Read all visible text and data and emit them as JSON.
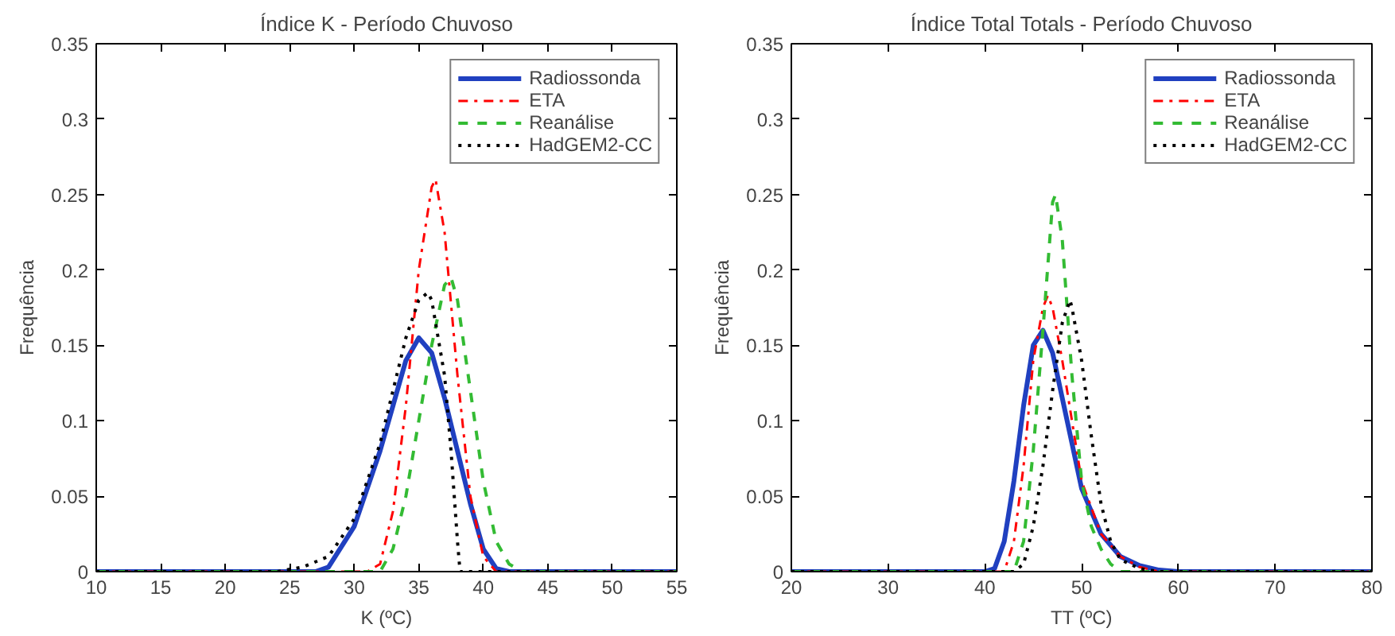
{
  "chart_data": [
    {
      "type": "line",
      "title": "Índice K - Período Chuvoso",
      "xlabel": "K (ºC)",
      "ylabel": "Frequência",
      "xlim": [
        10,
        55
      ],
      "xticks": [
        10,
        15,
        20,
        25,
        30,
        35,
        40,
        45,
        50,
        55
      ],
      "ylim": [
        0,
        0.35
      ],
      "yticks": [
        0,
        0.05,
        0.1,
        0.15,
        0.2,
        0.25,
        0.3,
        0.35
      ],
      "grid": false,
      "legend": "top right",
      "series": [
        {
          "name": "Radiossonda",
          "color": "#2040c0",
          "line_style": "solid",
          "x": [
            10,
            20,
            27,
            28,
            30,
            32,
            33,
            34,
            35,
            36,
            37,
            38,
            39,
            40,
            41,
            42,
            55
          ],
          "values": [
            0,
            0,
            0,
            0.003,
            0.03,
            0.08,
            0.11,
            0.14,
            0.155,
            0.145,
            0.115,
            0.08,
            0.045,
            0.015,
            0.002,
            0,
            0
          ]
        },
        {
          "name": "ETA",
          "color": "#ff0000",
          "line_style": "dashdot",
          "x": [
            10,
            20,
            31,
            32,
            33,
            34,
            35,
            36,
            36.3,
            37,
            38,
            39,
            40,
            41,
            55
          ],
          "values": [
            0,
            0,
            0,
            0.005,
            0.04,
            0.11,
            0.2,
            0.255,
            0.26,
            0.225,
            0.13,
            0.05,
            0.01,
            0,
            0
          ]
        },
        {
          "name": "Reanálise",
          "color": "#33bb33",
          "line_style": "dashed",
          "x": [
            10,
            20,
            32,
            33,
            34,
            35,
            36,
            37,
            37.5,
            38,
            39,
            40,
            41,
            42,
            43,
            55
          ],
          "values": [
            0,
            0,
            0,
            0.015,
            0.05,
            0.1,
            0.15,
            0.19,
            0.195,
            0.18,
            0.12,
            0.06,
            0.02,
            0.005,
            0,
            0
          ]
        },
        {
          "name": "HadGEM2-CC",
          "color": "#000000",
          "line_style": "dotted",
          "x": [
            10,
            20,
            24,
            26,
            28,
            30,
            32,
            33,
            34,
            35,
            35.7,
            36,
            37,
            37.5,
            38,
            38.2,
            55
          ],
          "values": [
            0,
            0,
            0,
            0.003,
            0.01,
            0.035,
            0.085,
            0.12,
            0.155,
            0.18,
            0.185,
            0.18,
            0.13,
            0.08,
            0.02,
            0,
            0
          ]
        }
      ]
    },
    {
      "type": "line",
      "title": "Índice Total Totals - Período Chuvoso",
      "xlabel": "TT (ºC)",
      "ylabel": "Frequência",
      "xlim": [
        20,
        80
      ],
      "xticks": [
        20,
        30,
        40,
        50,
        60,
        70,
        80
      ],
      "ylim": [
        0,
        0.35
      ],
      "yticks": [
        0,
        0.05,
        0.1,
        0.15,
        0.2,
        0.25,
        0.3,
        0.35
      ],
      "grid": false,
      "legend": "top right",
      "series": [
        {
          "name": "Radiossonda",
          "color": "#2040c0",
          "line_style": "solid",
          "x": [
            20,
            30,
            40,
            41,
            42,
            43,
            44,
            45,
            46,
            47,
            48,
            49,
            50,
            52,
            54,
            56,
            58,
            60,
            80
          ],
          "values": [
            0,
            0,
            0,
            0.002,
            0.02,
            0.06,
            0.11,
            0.15,
            0.16,
            0.145,
            0.115,
            0.085,
            0.055,
            0.025,
            0.01,
            0.004,
            0.001,
            0,
            0
          ]
        },
        {
          "name": "ETA",
          "color": "#ff0000",
          "line_style": "dashdot",
          "x": [
            20,
            30,
            42,
            43,
            44,
            45,
            46,
            46.5,
            47,
            48,
            49,
            50,
            52,
            54,
            56,
            58,
            80
          ],
          "values": [
            0,
            0,
            0,
            0.02,
            0.07,
            0.14,
            0.175,
            0.183,
            0.175,
            0.14,
            0.1,
            0.06,
            0.025,
            0.01,
            0.003,
            0,
            0
          ]
        },
        {
          "name": "Reanálise",
          "color": "#33bb33",
          "line_style": "dashed",
          "x": [
            20,
            30,
            43,
            44,
            45,
            46,
            47,
            47.3,
            48,
            49,
            50,
            51,
            52,
            53,
            54,
            80
          ],
          "values": [
            0,
            0,
            0,
            0.02,
            0.08,
            0.16,
            0.245,
            0.25,
            0.22,
            0.13,
            0.06,
            0.03,
            0.015,
            0.005,
            0,
            0
          ]
        },
        {
          "name": "HadGEM2-CC",
          "color": "#000000",
          "line_style": "dotted",
          "x": [
            20,
            30,
            43,
            44,
            45,
            46,
            47,
            48,
            48.8,
            49,
            50,
            51,
            52,
            53,
            54,
            56,
            58,
            80
          ],
          "values": [
            0,
            0,
            0,
            0.005,
            0.03,
            0.07,
            0.12,
            0.165,
            0.18,
            0.175,
            0.14,
            0.09,
            0.045,
            0.02,
            0.008,
            0.002,
            0,
            0
          ]
        }
      ]
    }
  ]
}
